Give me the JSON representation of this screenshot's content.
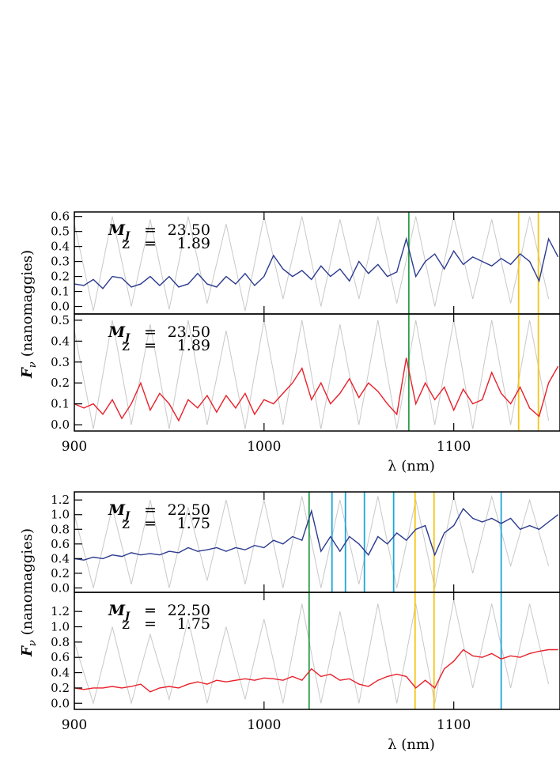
{
  "chart_data": [
    {
      "type": "line",
      "xlim": [
        900,
        1156
      ],
      "xticks": [
        900,
        1000,
        1100
      ],
      "xtick_labels": false,
      "ylim": [
        -0.05,
        0.63
      ],
      "yticks": [
        {
          "value": 0,
          "label": "0.0"
        },
        {
          "value": 0.1,
          "label": "0.1"
        },
        {
          "value": 0.2,
          "label": "0.2"
        },
        {
          "value": 0.3,
          "label": "0.3"
        },
        {
          "value": 0.4,
          "label": "0.4"
        },
        {
          "value": 0.5,
          "label": "0.5"
        },
        {
          "value": 0.6,
          "label": "0.6"
        }
      ],
      "ylabel_symbol": "F",
      "ylabel_sub": "ν",
      "ylabel": "(nanomaggies)",
      "annotation": {
        "mag_label": "M",
        "mag_sub": "J",
        "equals": "=",
        "mag_value": "23.50",
        "z_label": "z",
        "z_value": "1.89"
      },
      "series": [
        {
          "color": "#c8c8c8",
          "x": [
            900,
            910,
            920,
            930,
            940,
            950,
            960,
            970,
            980,
            990,
            1000,
            1010,
            1020,
            1030,
            1040,
            1050,
            1060,
            1070,
            1080,
            1090,
            1100,
            1110,
            1120,
            1130,
            1140,
            1150
          ],
          "values": [
            0.55,
            -0.03,
            0.6,
            0.0,
            0.58,
            -0.02,
            0.6,
            0.02,
            0.55,
            -0.03,
            0.6,
            0.05,
            0.6,
            0.0,
            0.58,
            0.05,
            0.6,
            0.02,
            0.6,
            0.0,
            0.6,
            0.05,
            0.58,
            0.02,
            0.6,
            0.05
          ]
        },
        {
          "color": "#2b3a8f",
          "x": [
            900,
            905,
            910,
            915,
            920,
            925,
            930,
            935,
            940,
            945,
            950,
            955,
            960,
            965,
            970,
            975,
            980,
            985,
            990,
            995,
            1000,
            1005,
            1010,
            1015,
            1020,
            1025,
            1030,
            1035,
            1040,
            1045,
            1050,
            1055,
            1060,
            1065,
            1070,
            1075,
            1080,
            1085,
            1090,
            1095,
            1100,
            1105,
            1110,
            1115,
            1120,
            1125,
            1130,
            1135,
            1140,
            1145,
            1150,
            1155
          ],
          "values": [
            0.15,
            0.14,
            0.18,
            0.12,
            0.2,
            0.19,
            0.13,
            0.15,
            0.2,
            0.14,
            0.2,
            0.13,
            0.15,
            0.22,
            0.15,
            0.13,
            0.2,
            0.15,
            0.22,
            0.14,
            0.2,
            0.34,
            0.25,
            0.2,
            0.24,
            0.18,
            0.27,
            0.2,
            0.25,
            0.17,
            0.3,
            0.22,
            0.28,
            0.2,
            0.23,
            0.45,
            0.2,
            0.3,
            0.35,
            0.25,
            0.37,
            0.28,
            0.33,
            0.3,
            0.27,
            0.32,
            0.28,
            0.35,
            0.3,
            0.17,
            0.45,
            0.33
          ]
        }
      ],
      "vlines": [
        {
          "x": 1076.3,
          "color": "#2a9d4a"
        },
        {
          "x": 1134.2,
          "color": "#f5c518"
        },
        {
          "x": 1144.6,
          "color": "#f5c518"
        }
      ]
    },
    {
      "type": "line",
      "xlim": [
        900,
        1156
      ],
      "xticks": [
        900,
        1000,
        1100
      ],
      "xtick_labels": true,
      "xlabel": "λ (nm)",
      "ylim": [
        -0.03,
        0.53
      ],
      "yticks": [
        {
          "value": 0,
          "label": "0.0"
        },
        {
          "value": 0.1,
          "label": "0.1"
        },
        {
          "value": 0.2,
          "label": "0.2"
        },
        {
          "value": 0.3,
          "label": "0.3"
        },
        {
          "value": 0.4,
          "label": "0.4"
        },
        {
          "value": 0.5,
          "label": "0.5"
        }
      ],
      "annotation": {
        "mag_label": "M",
        "mag_sub": "J",
        "equals": "=",
        "mag_value": "23.50",
        "z_label": "z",
        "z_value": "1.89"
      },
      "series": [
        {
          "color": "#c8c8c8",
          "x": [
            900,
            910,
            920,
            930,
            940,
            950,
            960,
            970,
            980,
            990,
            1000,
            1010,
            1020,
            1030,
            1040,
            1050,
            1060,
            1070,
            1080,
            1090,
            1100,
            1110,
            1120,
            1130,
            1140,
            1150
          ],
          "values": [
            0.45,
            -0.02,
            0.5,
            0.0,
            0.48,
            -0.02,
            0.5,
            0.0,
            0.45,
            -0.02,
            0.5,
            0.0,
            0.5,
            -0.02,
            0.48,
            0.0,
            0.5,
            -0.02,
            0.5,
            0.0,
            0.5,
            -0.02,
            0.5,
            0.0,
            0.5,
            0.02
          ]
        },
        {
          "color": "#e8202a",
          "x": [
            900,
            905,
            910,
            915,
            920,
            925,
            930,
            935,
            940,
            945,
            950,
            955,
            960,
            965,
            970,
            975,
            980,
            985,
            990,
            995,
            1000,
            1005,
            1010,
            1015,
            1020,
            1025,
            1030,
            1035,
            1040,
            1045,
            1050,
            1055,
            1060,
            1065,
            1070,
            1075,
            1080,
            1085,
            1090,
            1095,
            1100,
            1105,
            1110,
            1115,
            1120,
            1125,
            1130,
            1135,
            1140,
            1145,
            1150,
            1155
          ],
          "values": [
            0.1,
            0.08,
            0.1,
            0.05,
            0.12,
            0.03,
            0.1,
            0.2,
            0.07,
            0.15,
            0.1,
            0.02,
            0.12,
            0.08,
            0.14,
            0.06,
            0.14,
            0.08,
            0.15,
            0.05,
            0.12,
            0.1,
            0.15,
            0.2,
            0.27,
            0.12,
            0.2,
            0.1,
            0.15,
            0.22,
            0.13,
            0.2,
            0.16,
            0.1,
            0.05,
            0.32,
            0.1,
            0.2,
            0.12,
            0.18,
            0.07,
            0.17,
            0.1,
            0.12,
            0.25,
            0.15,
            0.1,
            0.18,
            0.08,
            0.04,
            0.2,
            0.28
          ]
        }
      ],
      "vlines": [
        {
          "x": 1076.3,
          "color": "#2a9d4a"
        },
        {
          "x": 1134.2,
          "color": "#f5c518"
        },
        {
          "x": 1144.6,
          "color": "#f5c518"
        }
      ]
    },
    {
      "type": "line",
      "xlim": [
        900,
        1156
      ],
      "xticks": [
        900,
        1000,
        1100
      ],
      "xtick_labels": false,
      "ylim": [
        -0.06,
        1.31
      ],
      "yticks": [
        {
          "value": 0,
          "label": "0.0"
        },
        {
          "value": 0.2,
          "label": "0.2"
        },
        {
          "value": 0.4,
          "label": "0.4"
        },
        {
          "value": 0.6,
          "label": "0.6"
        },
        {
          "value": 0.8,
          "label": "0.8"
        },
        {
          "value": 1,
          "label": "1.0"
        },
        {
          "value": 1.2,
          "label": "1.2"
        }
      ],
      "ylabel_symbol": "F",
      "ylabel_sub": "ν",
      "ylabel": "(nanomaggies)",
      "annotation": {
        "mag_label": "M",
        "mag_sub": "J",
        "equals": "=",
        "mag_value": "22.50",
        "z_label": "z",
        "z_value": "1.75"
      },
      "series": [
        {
          "color": "#c8c8c8",
          "x": [
            900,
            910,
            920,
            930,
            940,
            950,
            960,
            970,
            980,
            990,
            1000,
            1010,
            1020,
            1030,
            1040,
            1050,
            1060,
            1070,
            1080,
            1090,
            1100,
            1110,
            1120,
            1130,
            1140,
            1150
          ],
          "values": [
            1.0,
            0.0,
            1.1,
            0.05,
            1.2,
            0.0,
            1.1,
            0.1,
            1.2,
            0.05,
            1.2,
            0.0,
            1.25,
            0.0,
            1.2,
            0.05,
            1.25,
            0.0,
            1.2,
            0.0,
            1.25,
            0.2,
            1.25,
            0.3,
            1.2,
            0.3
          ]
        },
        {
          "color": "#2b3a8f",
          "x": [
            900,
            905,
            910,
            915,
            920,
            925,
            930,
            935,
            940,
            945,
            950,
            955,
            960,
            965,
            970,
            975,
            980,
            985,
            990,
            995,
            1000,
            1005,
            1010,
            1015,
            1020,
            1025,
            1030,
            1035,
            1040,
            1045,
            1050,
            1055,
            1060,
            1065,
            1070,
            1075,
            1080,
            1085,
            1090,
            1095,
            1100,
            1105,
            1110,
            1115,
            1120,
            1125,
            1130,
            1135,
            1140,
            1145,
            1150,
            1155
          ],
          "values": [
            0.4,
            0.38,
            0.42,
            0.4,
            0.45,
            0.43,
            0.48,
            0.45,
            0.47,
            0.45,
            0.5,
            0.48,
            0.55,
            0.5,
            0.52,
            0.55,
            0.5,
            0.55,
            0.52,
            0.58,
            0.55,
            0.65,
            0.6,
            0.7,
            0.65,
            1.05,
            0.5,
            0.7,
            0.5,
            0.7,
            0.6,
            0.45,
            0.7,
            0.6,
            0.75,
            0.65,
            0.8,
            0.85,
            0.45,
            0.75,
            0.85,
            1.08,
            0.95,
            0.9,
            0.95,
            0.88,
            0.95,
            0.8,
            0.85,
            0.8,
            0.9,
            1.0
          ]
        }
      ],
      "vlines": [
        {
          "x": 1023.75,
          "color": "#2a9d4a"
        },
        {
          "x": 1035.8,
          "color": "#1fa6d8"
        },
        {
          "x": 1042.9,
          "color": "#1fa6d8"
        },
        {
          "x": 1052.9,
          "color": "#1fa6d8"
        },
        {
          "x": 1068.3,
          "color": "#1fa6d8"
        },
        {
          "x": 1079.6,
          "color": "#f5c518"
        },
        {
          "x": 1089.6,
          "color": "#f5c518"
        },
        {
          "x": 1125,
          "color": "#1fa6d8"
        }
      ]
    },
    {
      "type": "line",
      "xlim": [
        900,
        1156
      ],
      "xticks": [
        900,
        1000,
        1100
      ],
      "xtick_labels": true,
      "xlabel": "λ (nm)",
      "ylim": [
        -0.08,
        1.45
      ],
      "yticks": [
        {
          "value": 0,
          "label": "0.0"
        },
        {
          "value": 0.2,
          "label": "0.2"
        },
        {
          "value": 0.4,
          "label": "0.4"
        },
        {
          "value": 0.6,
          "label": "0.6"
        },
        {
          "value": 0.8,
          "label": "0.8"
        },
        {
          "value": 1,
          "label": "1.0"
        },
        {
          "value": 1.2,
          "label": "1.2"
        }
      ],
      "annotation": {
        "mag_label": "M",
        "mag_sub": "J",
        "equals": "=",
        "mag_value": "22.50",
        "z_label": "z",
        "z_value": "1.75"
      },
      "series": [
        {
          "color": "#c8c8c8",
          "x": [
            900,
            910,
            920,
            930,
            940,
            950,
            960,
            970,
            980,
            990,
            1000,
            1010,
            1020,
            1030,
            1040,
            1050,
            1060,
            1070,
            1080,
            1090,
            1100,
            1110,
            1120,
            1130,
            1140,
            1150
          ],
          "values": [
            0.8,
            0.0,
            1.0,
            0.0,
            0.9,
            0.05,
            1.1,
            0.0,
            1.0,
            0.05,
            1.1,
            0.0,
            1.3,
            0.0,
            1.2,
            0.0,
            1.3,
            0.0,
            1.3,
            0.0,
            1.35,
            0.2,
            1.3,
            0.2,
            1.3,
            0.25
          ]
        },
        {
          "color": "#e8202a",
          "x": [
            900,
            905,
            910,
            915,
            920,
            925,
            930,
            935,
            940,
            945,
            950,
            955,
            960,
            965,
            970,
            975,
            980,
            985,
            990,
            995,
            1000,
            1005,
            1010,
            1015,
            1020,
            1025,
            1030,
            1035,
            1040,
            1045,
            1050,
            1055,
            1060,
            1065,
            1070,
            1075,
            1080,
            1085,
            1090,
            1095,
            1100,
            1105,
            1110,
            1115,
            1120,
            1125,
            1130,
            1135,
            1140,
            1145,
            1150,
            1155
          ],
          "values": [
            0.2,
            0.18,
            0.2,
            0.2,
            0.22,
            0.2,
            0.22,
            0.25,
            0.15,
            0.2,
            0.22,
            0.2,
            0.25,
            0.28,
            0.25,
            0.3,
            0.28,
            0.3,
            0.32,
            0.3,
            0.33,
            0.32,
            0.3,
            0.35,
            0.3,
            0.45,
            0.35,
            0.38,
            0.3,
            0.32,
            0.25,
            0.22,
            0.3,
            0.35,
            0.38,
            0.35,
            0.2,
            0.3,
            0.2,
            0.45,
            0.55,
            0.7,
            0.62,
            0.6,
            0.65,
            0.58,
            0.62,
            0.6,
            0.65,
            0.68,
            0.7,
            0.7
          ]
        }
      ],
      "vlines": [
        {
          "x": 1023.75,
          "color": "#2a9d4a"
        },
        {
          "x": 1079.6,
          "color": "#f5c518"
        },
        {
          "x": 1089.6,
          "color": "#f5c518"
        },
        {
          "x": 1125,
          "color": "#1fa6d8"
        }
      ]
    }
  ]
}
